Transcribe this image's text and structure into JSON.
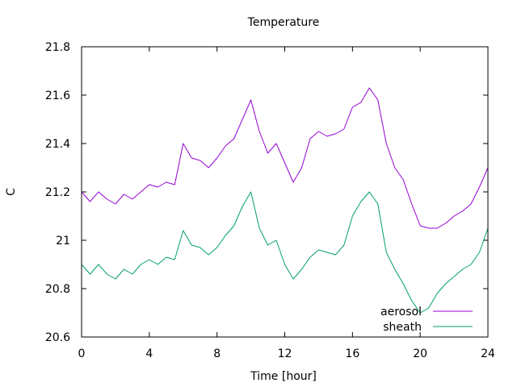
{
  "chart_data": {
    "type": "line",
    "title": "Temperature",
    "xlabel": "Time [hour]",
    "ylabel": "C",
    "xlim": [
      0,
      24
    ],
    "ylim": [
      20.6,
      21.8
    ],
    "xticks": [
      0,
      4,
      8,
      12,
      16,
      20,
      24
    ],
    "yticks": [
      20.6,
      20.8,
      21,
      21.2,
      21.4,
      21.6,
      21.8
    ],
    "ytick_labels": [
      "20.6",
      "20.8",
      "21",
      "21.2",
      "21.4",
      "21.6",
      "21.8"
    ],
    "grid": false,
    "legend_position": "bottom-right",
    "series": [
      {
        "name": "aerosol",
        "color": "#9400d3",
        "x": [
          0,
          0.5,
          1,
          1.5,
          2,
          2.5,
          3,
          3.5,
          4,
          4.5,
          5,
          5.5,
          6,
          6.5,
          7,
          7.5,
          8,
          8.5,
          9,
          9.5,
          10,
          10.5,
          11,
          11.5,
          12,
          12.5,
          13,
          13.5,
          14,
          14.5,
          15,
          15.5,
          16,
          16.5,
          17,
          17.5,
          18,
          18.5,
          19,
          19.5,
          20,
          20.5,
          21,
          21.5,
          22,
          22.5,
          23,
          23.5,
          24
        ],
        "values": [
          21.2,
          21.16,
          21.2,
          21.17,
          21.15,
          21.19,
          21.17,
          21.2,
          21.23,
          21.22,
          21.24,
          21.23,
          21.4,
          21.34,
          21.33,
          21.3,
          21.34,
          21.39,
          21.42,
          21.5,
          21.58,
          21.45,
          21.36,
          21.4,
          21.32,
          21.24,
          21.3,
          21.42,
          21.45,
          21.43,
          21.44,
          21.46,
          21.55,
          21.57,
          21.63,
          21.58,
          21.4,
          21.3,
          21.25,
          21.15,
          21.06,
          21.05,
          21.05,
          21.07,
          21.1,
          21.12,
          21.15,
          21.22,
          21.3
        ]
      },
      {
        "name": "sheath",
        "color": "#009e73",
        "x": [
          0,
          0.5,
          1,
          1.5,
          2,
          2.5,
          3,
          3.5,
          4,
          4.5,
          5,
          5.5,
          6,
          6.5,
          7,
          7.5,
          8,
          8.5,
          9,
          9.5,
          10,
          10.5,
          11,
          11.5,
          12,
          12.5,
          13,
          13.5,
          14,
          14.5,
          15,
          15.5,
          16,
          16.5,
          17,
          17.5,
          18,
          18.5,
          19,
          19.5,
          20,
          20.5,
          21,
          21.5,
          22,
          22.5,
          23,
          23.5,
          24
        ],
        "values": [
          20.9,
          20.86,
          20.9,
          20.86,
          20.84,
          20.88,
          20.86,
          20.9,
          20.92,
          20.9,
          20.93,
          20.92,
          21.04,
          20.98,
          20.97,
          20.94,
          20.97,
          21.02,
          21.06,
          21.14,
          21.2,
          21.05,
          20.98,
          21,
          20.9,
          20.84,
          20.88,
          20.93,
          20.96,
          20.95,
          20.94,
          20.98,
          21.1,
          21.16,
          21.2,
          21.15,
          20.95,
          20.88,
          20.82,
          20.75,
          20.7,
          20.72,
          20.78,
          20.82,
          20.85,
          20.88,
          20.9,
          20.95,
          21.05
        ]
      }
    ]
  }
}
